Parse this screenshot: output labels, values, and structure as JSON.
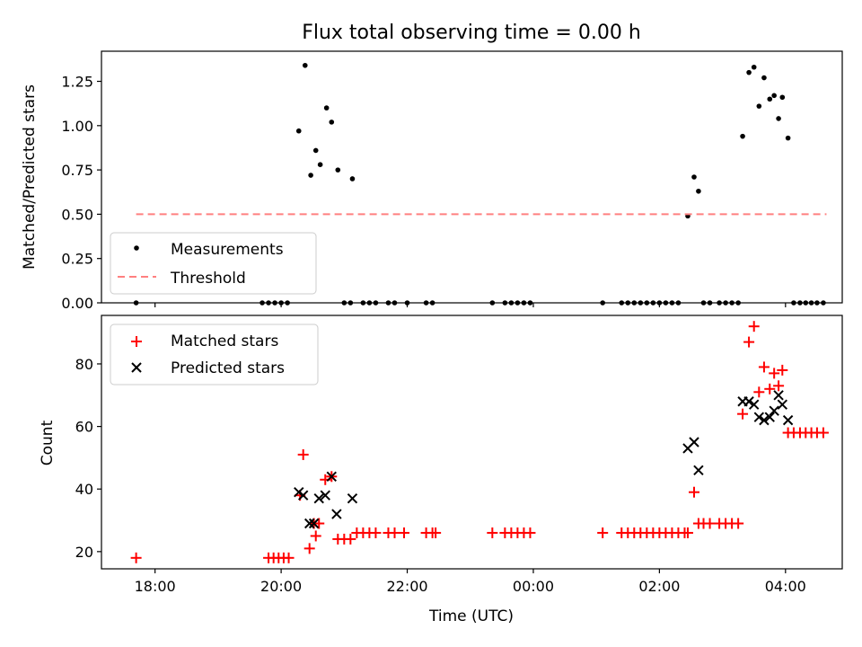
{
  "chart_data": [
    {
      "type": "scatter",
      "title": "Flux total observing time = 0.00 h",
      "xlabel": "",
      "ylabel": "Matched/Predicted stars",
      "x_unit": "hours after 18:00 UTC",
      "xlim": [
        -0.85,
        10.9
      ],
      "ylim": [
        0.0,
        1.42
      ],
      "yticks": [
        0.0,
        0.25,
        0.5,
        0.75,
        1.0,
        1.25
      ],
      "ytick_labels": [
        "0.00",
        "0.25",
        "0.50",
        "0.75",
        "1.00",
        "1.25"
      ],
      "xticks": [
        0,
        2,
        4,
        6,
        8,
        10
      ],
      "legend": {
        "position": "lower-left",
        "entries": [
          "Measurements",
          "Threshold"
        ]
      },
      "series": [
        {
          "name": "Measurements",
          "marker": "dot",
          "color": "#000000",
          "points": [
            [
              -0.3,
              0.0
            ],
            [
              1.7,
              0.0
            ],
            [
              1.8,
              0.0
            ],
            [
              1.9,
              0.0
            ],
            [
              2.0,
              0.0
            ],
            [
              2.1,
              0.0
            ],
            [
              2.28,
              0.97
            ],
            [
              2.38,
              1.34
            ],
            [
              2.47,
              0.72
            ],
            [
              2.55,
              0.86
            ],
            [
              2.62,
              0.78
            ],
            [
              2.72,
              1.1
            ],
            [
              2.8,
              1.02
            ],
            [
              2.9,
              0.75
            ],
            [
              3.0,
              0.0
            ],
            [
              3.1,
              0.0
            ],
            [
              3.13,
              0.7
            ],
            [
              3.3,
              0.0
            ],
            [
              3.4,
              0.0
            ],
            [
              3.5,
              0.0
            ],
            [
              3.7,
              0.0
            ],
            [
              3.8,
              0.0
            ],
            [
              4.0,
              0.0
            ],
            [
              4.3,
              0.0
            ],
            [
              4.4,
              0.0
            ],
            [
              5.35,
              0.0
            ],
            [
              5.55,
              0.0
            ],
            [
              5.65,
              0.0
            ],
            [
              5.75,
              0.0
            ],
            [
              5.85,
              0.0
            ],
            [
              5.95,
              0.0
            ],
            [
              7.1,
              0.0
            ],
            [
              7.4,
              0.0
            ],
            [
              7.5,
              0.0
            ],
            [
              7.6,
              0.0
            ],
            [
              7.7,
              0.0
            ],
            [
              7.8,
              0.0
            ],
            [
              7.9,
              0.0
            ],
            [
              8.0,
              0.0
            ],
            [
              8.1,
              0.0
            ],
            [
              8.2,
              0.0
            ],
            [
              8.3,
              0.0
            ],
            [
              8.45,
              0.49
            ],
            [
              8.55,
              0.71
            ],
            [
              8.62,
              0.63
            ],
            [
              8.7,
              0.0
            ],
            [
              8.8,
              0.0
            ],
            [
              8.95,
              0.0
            ],
            [
              9.05,
              0.0
            ],
            [
              9.15,
              0.0
            ],
            [
              9.25,
              0.0
            ],
            [
              9.32,
              0.94
            ],
            [
              9.42,
              1.3
            ],
            [
              9.5,
              1.33
            ],
            [
              9.58,
              1.11
            ],
            [
              9.66,
              1.27
            ],
            [
              9.75,
              1.15
            ],
            [
              9.82,
              1.17
            ],
            [
              9.89,
              1.04
            ],
            [
              9.95,
              1.16
            ],
            [
              10.04,
              0.93
            ],
            [
              10.13,
              0.0
            ],
            [
              10.23,
              0.0
            ],
            [
              10.32,
              0.0
            ],
            [
              10.41,
              0.0
            ],
            [
              10.5,
              0.0
            ],
            [
              10.6,
              0.0
            ]
          ]
        },
        {
          "name": "Threshold",
          "style": "dashed",
          "color": "#ff8080",
          "points": [
            [
              -0.3,
              0.5
            ],
            [
              10.65,
              0.5
            ]
          ]
        }
      ]
    },
    {
      "type": "scatter",
      "title": "",
      "xlabel": "Time (UTC)",
      "ylabel": "Count",
      "x_unit": "hours after 18:00 UTC",
      "xlim": [
        -0.85,
        10.9
      ],
      "ylim": [
        14.5,
        95.5
      ],
      "yticks": [
        20,
        40,
        60,
        80
      ],
      "ytick_labels": [
        "20",
        "40",
        "60",
        "80"
      ],
      "xticks": [
        0,
        2,
        4,
        6,
        8,
        10
      ],
      "xtick_labels": [
        "18:00",
        "20:00",
        "22:00",
        "00:00",
        "02:00",
        "04:00"
      ],
      "legend": {
        "position": "upper-left",
        "entries": [
          "Matched stars",
          "Predicted stars"
        ]
      },
      "series": [
        {
          "name": "Matched stars",
          "marker": "plus",
          "color": "#ff0000",
          "points": [
            [
              -0.3,
              18
            ],
            [
              1.8,
              18
            ],
            [
              1.88,
              18
            ],
            [
              1.96,
              18
            ],
            [
              2.04,
              18
            ],
            [
              2.12,
              18
            ],
            [
              2.3,
              38
            ],
            [
              2.35,
              51
            ],
            [
              2.45,
              21
            ],
            [
              2.52,
              29
            ],
            [
              2.55,
              25
            ],
            [
              2.6,
              29
            ],
            [
              2.7,
              43
            ],
            [
              2.8,
              44
            ],
            [
              2.9,
              24
            ],
            [
              3.0,
              24
            ],
            [
              3.1,
              24
            ],
            [
              3.2,
              26
            ],
            [
              3.3,
              26
            ],
            [
              3.4,
              26
            ],
            [
              3.5,
              26
            ],
            [
              3.7,
              26
            ],
            [
              3.8,
              26
            ],
            [
              3.95,
              26
            ],
            [
              4.3,
              26
            ],
            [
              4.4,
              26
            ],
            [
              4.45,
              26
            ],
            [
              5.35,
              26
            ],
            [
              5.55,
              26
            ],
            [
              5.65,
              26
            ],
            [
              5.75,
              26
            ],
            [
              5.85,
              26
            ],
            [
              5.95,
              26
            ],
            [
              7.1,
              26
            ],
            [
              7.4,
              26
            ],
            [
              7.5,
              26
            ],
            [
              7.6,
              26
            ],
            [
              7.7,
              26
            ],
            [
              7.8,
              26
            ],
            [
              7.9,
              26
            ],
            [
              8.0,
              26
            ],
            [
              8.1,
              26
            ],
            [
              8.2,
              26
            ],
            [
              8.3,
              26
            ],
            [
              8.4,
              26
            ],
            [
              8.45,
              26
            ],
            [
              8.55,
              39
            ],
            [
              8.62,
              29
            ],
            [
              8.7,
              29
            ],
            [
              8.8,
              29
            ],
            [
              8.95,
              29
            ],
            [
              9.05,
              29
            ],
            [
              9.15,
              29
            ],
            [
              9.25,
              29
            ],
            [
              9.32,
              64
            ],
            [
              9.42,
              87
            ],
            [
              9.5,
              92
            ],
            [
              9.58,
              71
            ],
            [
              9.66,
              79
            ],
            [
              9.75,
              72
            ],
            [
              9.82,
              77
            ],
            [
              9.89,
              73
            ],
            [
              9.95,
              78
            ],
            [
              10.04,
              58
            ],
            [
              10.13,
              58
            ],
            [
              10.23,
              58
            ],
            [
              10.32,
              58
            ],
            [
              10.41,
              58
            ],
            [
              10.5,
              58
            ],
            [
              10.6,
              58
            ]
          ]
        },
        {
          "name": "Predicted stars",
          "marker": "x",
          "color": "#000000",
          "points": [
            [
              2.28,
              39
            ],
            [
              2.35,
              38
            ],
            [
              2.45,
              29
            ],
            [
              2.52,
              29
            ],
            [
              2.6,
              37
            ],
            [
              2.7,
              38
            ],
            [
              2.8,
              44
            ],
            [
              2.88,
              32
            ],
            [
              3.13,
              37
            ],
            [
              8.45,
              53
            ],
            [
              8.55,
              55
            ],
            [
              8.62,
              46
            ],
            [
              9.32,
              68
            ],
            [
              9.42,
              68
            ],
            [
              9.5,
              67
            ],
            [
              9.58,
              63
            ],
            [
              9.66,
              62
            ],
            [
              9.75,
              63
            ],
            [
              9.82,
              65
            ],
            [
              9.89,
              70
            ],
            [
              9.95,
              67
            ],
            [
              10.04,
              62
            ]
          ]
        }
      ]
    }
  ]
}
